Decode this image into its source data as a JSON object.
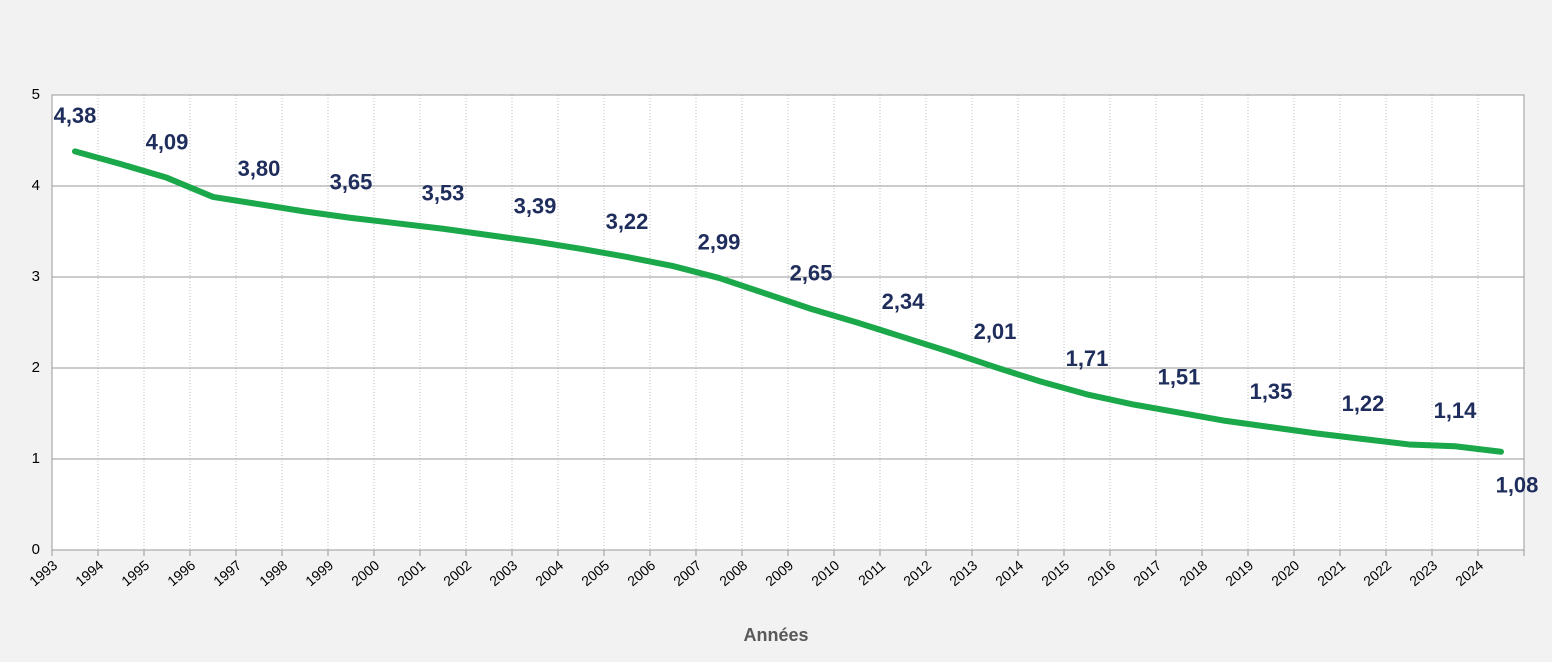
{
  "chart_data": {
    "type": "line",
    "x_label": "Années",
    "categories": [
      "1993",
      "1994",
      "1995",
      "1996",
      "1997",
      "1998",
      "1999",
      "2000",
      "2001",
      "2002",
      "2003",
      "2004",
      "2005",
      "2006",
      "2007",
      "2008",
      "2009",
      "2010",
      "2011",
      "2012",
      "2013",
      "2014",
      "2015",
      "2016",
      "2017",
      "2018",
      "2019",
      "2020",
      "2021",
      "2022",
      "2023",
      "2024"
    ],
    "series": [
      {
        "color": "#1aa84a",
        "values": [
          4.38,
          4.24,
          4.09,
          3.88,
          3.8,
          3.72,
          3.65,
          3.59,
          3.53,
          3.46,
          3.39,
          3.31,
          3.22,
          3.12,
          2.99,
          2.82,
          2.65,
          2.5,
          2.34,
          2.18,
          2.01,
          1.85,
          1.71,
          1.6,
          1.51,
          1.42,
          1.35,
          1.28,
          1.22,
          1.16,
          1.14,
          1.08
        ],
        "value_labels": [
          "4,38",
          null,
          "4,09",
          null,
          "3,80",
          null,
          "3,65",
          null,
          "3,53",
          null,
          "3,39",
          null,
          "3,22",
          null,
          "2,99",
          null,
          "2,65",
          null,
          "2,34",
          null,
          "2,01",
          null,
          "1,71",
          null,
          "1,51",
          null,
          "1,35",
          null,
          "1,22",
          null,
          "1,14",
          "1,08"
        ]
      }
    ],
    "ylim": [
      0,
      5
    ],
    "yticks": [
      0,
      1,
      2,
      3,
      4,
      5
    ],
    "grid": true
  }
}
